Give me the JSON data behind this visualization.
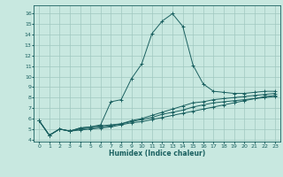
{
  "title": "",
  "xlabel": "Humidex (Indice chaleur)",
  "xlim": [
    -0.5,
    23.5
  ],
  "ylim": [
    3.8,
    16.8
  ],
  "yticks": [
    4,
    5,
    6,
    7,
    8,
    9,
    10,
    11,
    12,
    13,
    14,
    15,
    16
  ],
  "xticks": [
    0,
    1,
    2,
    3,
    4,
    5,
    6,
    7,
    8,
    9,
    10,
    11,
    12,
    13,
    14,
    15,
    16,
    17,
    18,
    19,
    20,
    21,
    22,
    23
  ],
  "background_color": "#c8e8e0",
  "grid_color": "#a0c8c0",
  "line_color": "#1a6060",
  "lines": [
    [
      5.8,
      4.4,
      5.0,
      4.8,
      5.1,
      5.2,
      5.4,
      7.6,
      7.8,
      9.8,
      11.2,
      14.1,
      15.3,
      16.0,
      14.8,
      11.1,
      9.3,
      8.6,
      8.5,
      8.4,
      8.4,
      8.5,
      8.6,
      8.6
    ],
    [
      5.8,
      4.4,
      5.0,
      4.8,
      5.1,
      5.2,
      5.3,
      5.4,
      5.5,
      5.8,
      6.0,
      6.3,
      6.6,
      6.9,
      7.2,
      7.5,
      7.6,
      7.8,
      7.9,
      8.0,
      8.1,
      8.2,
      8.3,
      8.4
    ],
    [
      5.8,
      4.4,
      5.0,
      4.8,
      5.0,
      5.1,
      5.2,
      5.3,
      5.5,
      5.7,
      5.9,
      6.1,
      6.4,
      6.6,
      6.8,
      7.1,
      7.3,
      7.5,
      7.6,
      7.7,
      7.8,
      7.9,
      8.0,
      8.1
    ],
    [
      5.8,
      4.4,
      5.0,
      4.8,
      4.9,
      5.0,
      5.1,
      5.2,
      5.4,
      5.6,
      5.7,
      5.9,
      6.1,
      6.3,
      6.5,
      6.7,
      6.9,
      7.1,
      7.3,
      7.5,
      7.7,
      7.9,
      8.1,
      8.2
    ]
  ]
}
